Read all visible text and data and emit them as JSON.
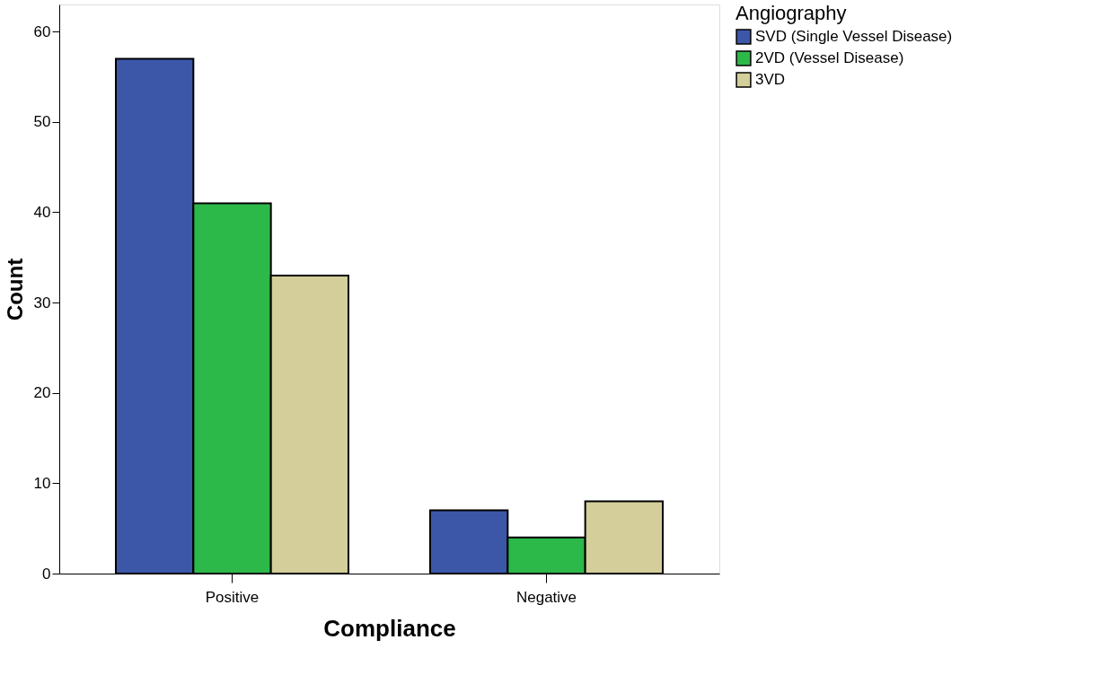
{
  "chart_data": {
    "type": "bar",
    "xlabel": "Compliance",
    "ylabel": "Count",
    "legend_title": "Angiography",
    "categories": [
      "Positive",
      "Negative"
    ],
    "series": [
      {
        "name": "SVD (Single Vessel Disease)",
        "color": "#3c56a8",
        "values": [
          57,
          7
        ]
      },
      {
        "name": "2VD (Vessel Disease)",
        "color": "#2db84a",
        "values": [
          41,
          4
        ]
      },
      {
        "name": "3VD",
        "color": "#d3ce9a",
        "values": [
          33,
          8
        ]
      }
    ],
    "ylim": [
      0,
      63
    ],
    "yticks": [
      0,
      10,
      20,
      30,
      40,
      50,
      60
    ],
    "grid": false,
    "legend": "right"
  }
}
